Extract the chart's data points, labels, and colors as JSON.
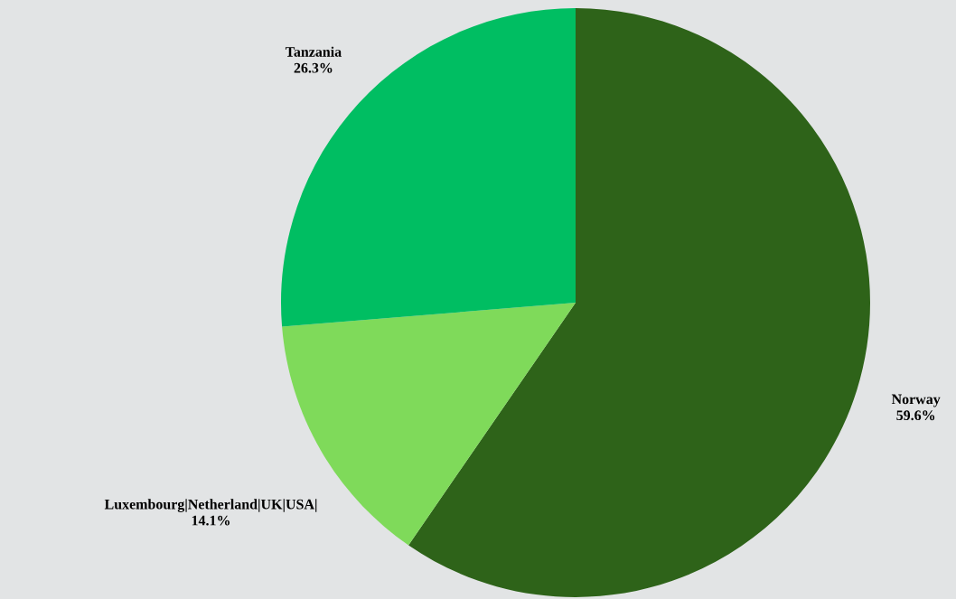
{
  "chart_data": {
    "type": "pie",
    "categories": [
      "Norway",
      "Luxembourg|Netherland|UK|USA|",
      "Tanzania"
    ],
    "values": [
      59.6,
      14.1,
      26.3
    ],
    "colors": [
      "#2e6319",
      "#7fda5a",
      "#00be62"
    ],
    "value_labels": [
      "59.6%",
      "14.1%",
      "26.3%"
    ]
  }
}
